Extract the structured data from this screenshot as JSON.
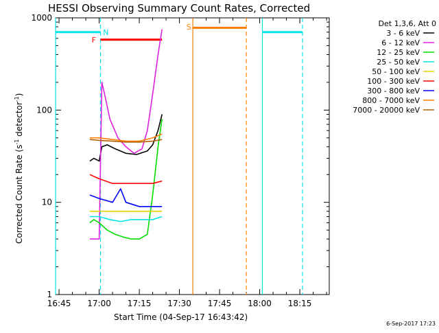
{
  "title": "HESSI Observing Summary Count Rates, Corrected",
  "footnote": "6-Sep-2017 17:23",
  "chart_data": {
    "type": "line",
    "title": "HESSI Observing Summary Count Rates, Corrected",
    "xlabel": "Start Time (04-Sep-17 16:43:42)",
    "ylabel": "Corrected Count Rate (s",
    "ylabel_sup1": "-1",
    "ylabel_mid": " detector",
    "ylabel_sup2": "-1",
    "ylabel_end": ")",
    "yscale": "log",
    "ylim": [
      1,
      1000
    ],
    "xlim": [
      "16:43:42",
      "18:26:00"
    ],
    "x_tick_labels": [
      "16:45",
      "17:00",
      "17:15",
      "17:30",
      "17:45",
      "18:00",
      "18:15"
    ],
    "y_tick_labels": [
      "1",
      "10",
      "100",
      "1000"
    ],
    "legend_header": "Det 1,3,6, Att 0",
    "legend_placement": "right, outside plot",
    "colors": {
      "black": "#000000",
      "magenta": "#e020e0",
      "green": "#00dd00",
      "cyan": "#00e5e5",
      "yellow": "#e8d000",
      "red": "#ff0000",
      "blue": "#0000ff",
      "orange": "#ff8000",
      "brown": "#b06000"
    },
    "series": [
      {
        "name": "3 - 6 keV",
        "color": "#000000",
        "points": [
          [
            "16:56:30",
            28
          ],
          [
            "16:58:00",
            30
          ],
          [
            "17:00:00",
            28
          ],
          [
            "17:01:00",
            40
          ],
          [
            "17:03:00",
            42
          ],
          [
            "17:06:00",
            38
          ],
          [
            "17:10:00",
            34
          ],
          [
            "17:14:00",
            33
          ],
          [
            "17:18:00",
            36
          ],
          [
            "17:20:00",
            42
          ],
          [
            "17:22:00",
            60
          ],
          [
            "17:23:30",
            90
          ]
        ]
      },
      {
        "name": "6 - 12 keV",
        "color": "#e020e0",
        "points": [
          [
            "16:56:30",
            4
          ],
          [
            "16:58:00",
            4
          ],
          [
            "17:00:00",
            4
          ],
          [
            "17:01:00",
            200
          ],
          [
            "17:02:00",
            150
          ],
          [
            "17:04:00",
            80
          ],
          [
            "17:07:00",
            50
          ],
          [
            "17:10:00",
            40
          ],
          [
            "17:13:00",
            34
          ],
          [
            "17:16:00",
            38
          ],
          [
            "17:18:00",
            60
          ],
          [
            "17:20:00",
            150
          ],
          [
            "17:22:00",
            400
          ],
          [
            "17:23:30",
            750
          ]
        ]
      },
      {
        "name": "12 - 25 keV",
        "color": "#00dd00",
        "points": [
          [
            "16:56:30",
            6
          ],
          [
            "16:58:00",
            6.5
          ],
          [
            "17:00:00",
            6
          ],
          [
            "17:03:00",
            5
          ],
          [
            "17:06:00",
            4.5
          ],
          [
            "17:09:00",
            4.2
          ],
          [
            "17:12:00",
            4
          ],
          [
            "17:15:00",
            4
          ],
          [
            "17:18:00",
            4.5
          ],
          [
            "17:20:00",
            12
          ],
          [
            "17:22:00",
            40
          ],
          [
            "17:23:30",
            80
          ]
        ]
      },
      {
        "name": "25 - 50 keV",
        "color": "#00e5e5",
        "points": [
          [
            "16:56:30",
            7
          ],
          [
            "16:58:00",
            7
          ],
          [
            "17:00:00",
            7
          ],
          [
            "17:04:00",
            6.5
          ],
          [
            "17:08:00",
            6.2
          ],
          [
            "17:12:00",
            6.5
          ],
          [
            "17:16:00",
            6.5
          ],
          [
            "17:20:00",
            6.5
          ],
          [
            "17:23:30",
            7
          ]
        ]
      },
      {
        "name": "50 - 100 keV",
        "color": "#e8d000",
        "points": [
          [
            "16:56:30",
            8
          ],
          [
            "17:00:00",
            8
          ],
          [
            "17:05:00",
            8
          ],
          [
            "17:10:00",
            8
          ],
          [
            "17:15:00",
            8
          ],
          [
            "17:20:00",
            8
          ],
          [
            "17:23:30",
            8
          ]
        ]
      },
      {
        "name": "100 - 300 keV",
        "color": "#ff0000",
        "points": [
          [
            "16:56:30",
            20
          ],
          [
            "17:00:00",
            18
          ],
          [
            "17:05:00",
            16
          ],
          [
            "17:10:00",
            16
          ],
          [
            "17:15:00",
            16
          ],
          [
            "17:20:00",
            16
          ],
          [
            "17:23:30",
            17
          ]
        ]
      },
      {
        "name": "300 - 800 keV",
        "color": "#0000ff",
        "points": [
          [
            "16:56:30",
            12
          ],
          [
            "17:00:00",
            11
          ],
          [
            "17:05:00",
            10
          ],
          [
            "17:08:00",
            14
          ],
          [
            "17:10:00",
            10
          ],
          [
            "17:15:00",
            9
          ],
          [
            "17:20:00",
            9
          ],
          [
            "17:23:30",
            9
          ]
        ]
      },
      {
        "name": "800 - 7000 keV",
        "color": "#ff8000",
        "points": [
          [
            "16:56:30",
            50
          ],
          [
            "17:00:00",
            50
          ],
          [
            "17:05:00",
            48
          ],
          [
            "17:10:00",
            46
          ],
          [
            "17:15:00",
            46
          ],
          [
            "17:20:00",
            50
          ],
          [
            "17:23:30",
            55
          ]
        ]
      },
      {
        "name": "7000 - 20000 keV",
        "color": "#b06000",
        "points": [
          [
            "16:56:30",
            48
          ],
          [
            "17:00:00",
            47
          ],
          [
            "17:05:00",
            46
          ],
          [
            "17:10:00",
            45
          ],
          [
            "17:15:00",
            45
          ],
          [
            "17:20:00",
            46
          ],
          [
            "17:23:30",
            48
          ]
        ]
      }
    ],
    "bars": [
      {
        "label": "",
        "color": "#00e5e5",
        "x_start": "16:43:42",
        "x_end": "17:00:30",
        "y": 700
      },
      {
        "label": "F",
        "color": "#ff0000",
        "x_start": "17:00:30",
        "x_end": "17:23:30",
        "y": 580
      },
      {
        "label": "S",
        "color": "#ff8000",
        "x_start": "17:35:00",
        "x_end": "17:55:00",
        "y": 780
      },
      {
        "label": "",
        "color": "#00e5e5",
        "x_start": "18:01:00",
        "x_end": "18:16:00",
        "y": 700
      }
    ],
    "labels": [
      {
        "text": "N",
        "color": "#00e5e5",
        "x": "17:02:30",
        "y": 700
      },
      {
        "text": "F",
        "color": "#ff0000",
        "x": "16:58:00",
        "y": 580
      },
      {
        "text": "S",
        "color": "#ff8000",
        "x": "17:33:30",
        "y": 800
      }
    ],
    "vlines": [
      {
        "x": "16:43:42",
        "color": "#00e5e5",
        "style": "solid"
      },
      {
        "x": "17:00:30",
        "color": "#00e5e5",
        "style": "dashed"
      },
      {
        "x": "17:35:00",
        "color": "#ff8000",
        "style": "solid"
      },
      {
        "x": "17:55:00",
        "color": "#ff8000",
        "style": "dashed"
      },
      {
        "x": "18:01:00",
        "color": "#00e5e5",
        "style": "solid"
      },
      {
        "x": "18:16:00",
        "color": "#00e5e5",
        "style": "dashed"
      }
    ]
  }
}
